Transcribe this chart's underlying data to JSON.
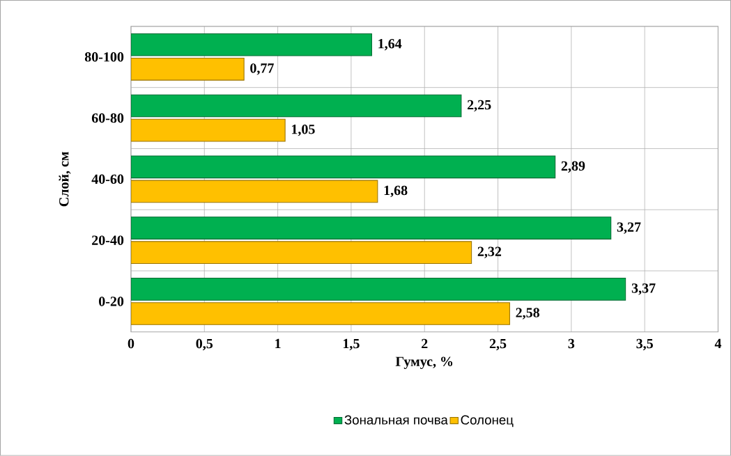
{
  "chart_data": {
    "type": "bar",
    "orientation": "horizontal",
    "xlabel": "Гумус, %",
    "ylabel": "Слой, см",
    "categories": [
      "80-100",
      "60-80",
      "40-60",
      "20-40",
      "0-20"
    ],
    "series": [
      {
        "name": "Зональная почва",
        "color": "#00b050",
        "values": [
          1.64,
          2.25,
          2.89,
          3.27,
          3.37
        ],
        "value_labels": [
          "1,64",
          "2,25",
          "2,89",
          "3,27",
          "3,37"
        ]
      },
      {
        "name": "Солонец",
        "color": "#ffc000",
        "values": [
          0.77,
          1.05,
          1.68,
          2.32,
          2.58
        ],
        "value_labels": [
          "0,77",
          "1,05",
          "1,68",
          "2,32",
          "2,58"
        ]
      }
    ],
    "xlim": [
      0,
      4
    ],
    "xticks": [
      0,
      {
        "value": 0.5,
        "label": "0,5"
      },
      1,
      {
        "value": 1.5,
        "label": "1,5"
      },
      2,
      {
        "value": 2.5,
        "label": "2,5"
      },
      3,
      {
        "value": 3.5,
        "label": "3,5"
      },
      4
    ],
    "grid": true,
    "legend": "bottom"
  }
}
